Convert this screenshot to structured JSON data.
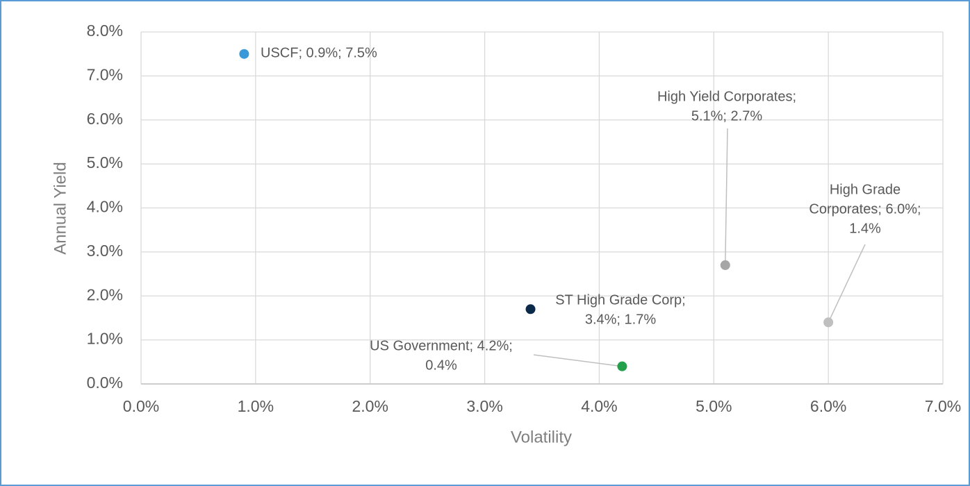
{
  "chart_data": {
    "type": "scatter",
    "x_label": "Volatility",
    "y_label": "Annual Yield",
    "xlim": [
      0,
      7
    ],
    "ylim": [
      0,
      8
    ],
    "xticks": [
      {
        "value": 0,
        "label": "0.0%"
      },
      {
        "value": 1,
        "label": "1.0%"
      },
      {
        "value": 2,
        "label": "2.0%"
      },
      {
        "value": 3,
        "label": "3.0%"
      },
      {
        "value": 4,
        "label": "4.0%"
      },
      {
        "value": 5,
        "label": "5.0%"
      },
      {
        "value": 6,
        "label": "6.0%"
      },
      {
        "value": 7,
        "label": "7.0%"
      }
    ],
    "yticks": [
      {
        "value": 0,
        "label": "0.0%"
      },
      {
        "value": 1,
        "label": "1.0%"
      },
      {
        "value": 2,
        "label": "2.0%"
      },
      {
        "value": 3,
        "label": "3.0%"
      },
      {
        "value": 4,
        "label": "4.0%"
      },
      {
        "value": 5,
        "label": "5.0%"
      },
      {
        "value": 6,
        "label": "6.0%"
      },
      {
        "value": 7,
        "label": "7.0%"
      },
      {
        "value": 8,
        "label": "8.0%"
      }
    ],
    "grid": true,
    "series": [
      {
        "name": "USCF",
        "color": "#3a9ad9",
        "x": [
          0.9
        ],
        "values": [
          7.5
        ],
        "value_labels": [
          [
            "USCF; 0.9%; 7.5%"
          ]
        ]
      },
      {
        "name": "High Yield Corporates",
        "color": "#a6a6a6",
        "x": [
          5.1
        ],
        "values": [
          2.7
        ],
        "value_labels": [
          [
            "High Yield Corporates;",
            "5.1%; 2.7%"
          ]
        ]
      },
      {
        "name": "High Grade Corporates",
        "color": "#bfbfbf",
        "x": [
          6.0
        ],
        "values": [
          1.4
        ],
        "value_labels": [
          [
            "High Grade",
            "Corporates; 6.0%;",
            "1.4%"
          ]
        ]
      },
      {
        "name": "ST High Grade Corp",
        "color": "#0b2a4a",
        "x": [
          3.4
        ],
        "values": [
          1.7
        ],
        "value_labels": [
          [
            "ST High Grade Corp;",
            "3.4%; 1.7%"
          ]
        ]
      },
      {
        "name": "US Government",
        "color": "#22a04b",
        "x": [
          4.2
        ],
        "values": [
          0.4
        ],
        "value_labels": [
          [
            "US Government; 4.2%;",
            "0.4%"
          ]
        ]
      }
    ]
  }
}
